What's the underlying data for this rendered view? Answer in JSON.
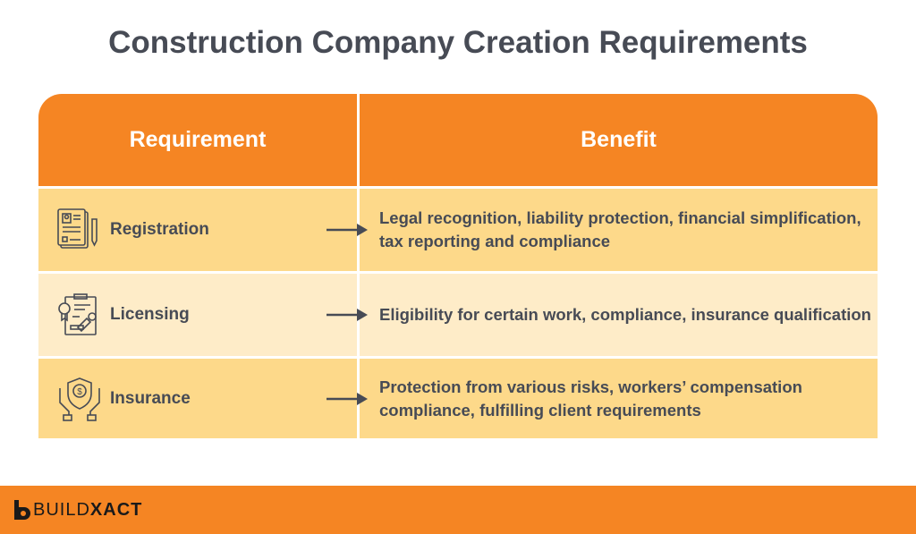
{
  "title": "Construction Company Creation Requirements",
  "header": {
    "requirement": "Requirement",
    "benefit": "Benefit"
  },
  "rows": [
    {
      "requirement": "Registration",
      "icon": "document-id-icon",
      "benefit": "Legal recognition, liability protection, financial simplification, tax reporting and compliance"
    },
    {
      "requirement": "Licensing",
      "icon": "certificate-stamp-icon",
      "benefit": "Eligibility for certain work, compliance, insurance qualification"
    },
    {
      "requirement": "Insurance",
      "icon": "hands-shield-dollar-icon",
      "benefit": "Protection from various risks, workers’ compensation compliance, fulfilling client requirements"
    }
  ],
  "footer": {
    "brand_light": "BUILD",
    "brand_bold": "XACT"
  },
  "colors": {
    "orange": "#f58523",
    "row_dark": "#fdd98a",
    "row_light": "#feecc8",
    "text": "#474b55"
  }
}
